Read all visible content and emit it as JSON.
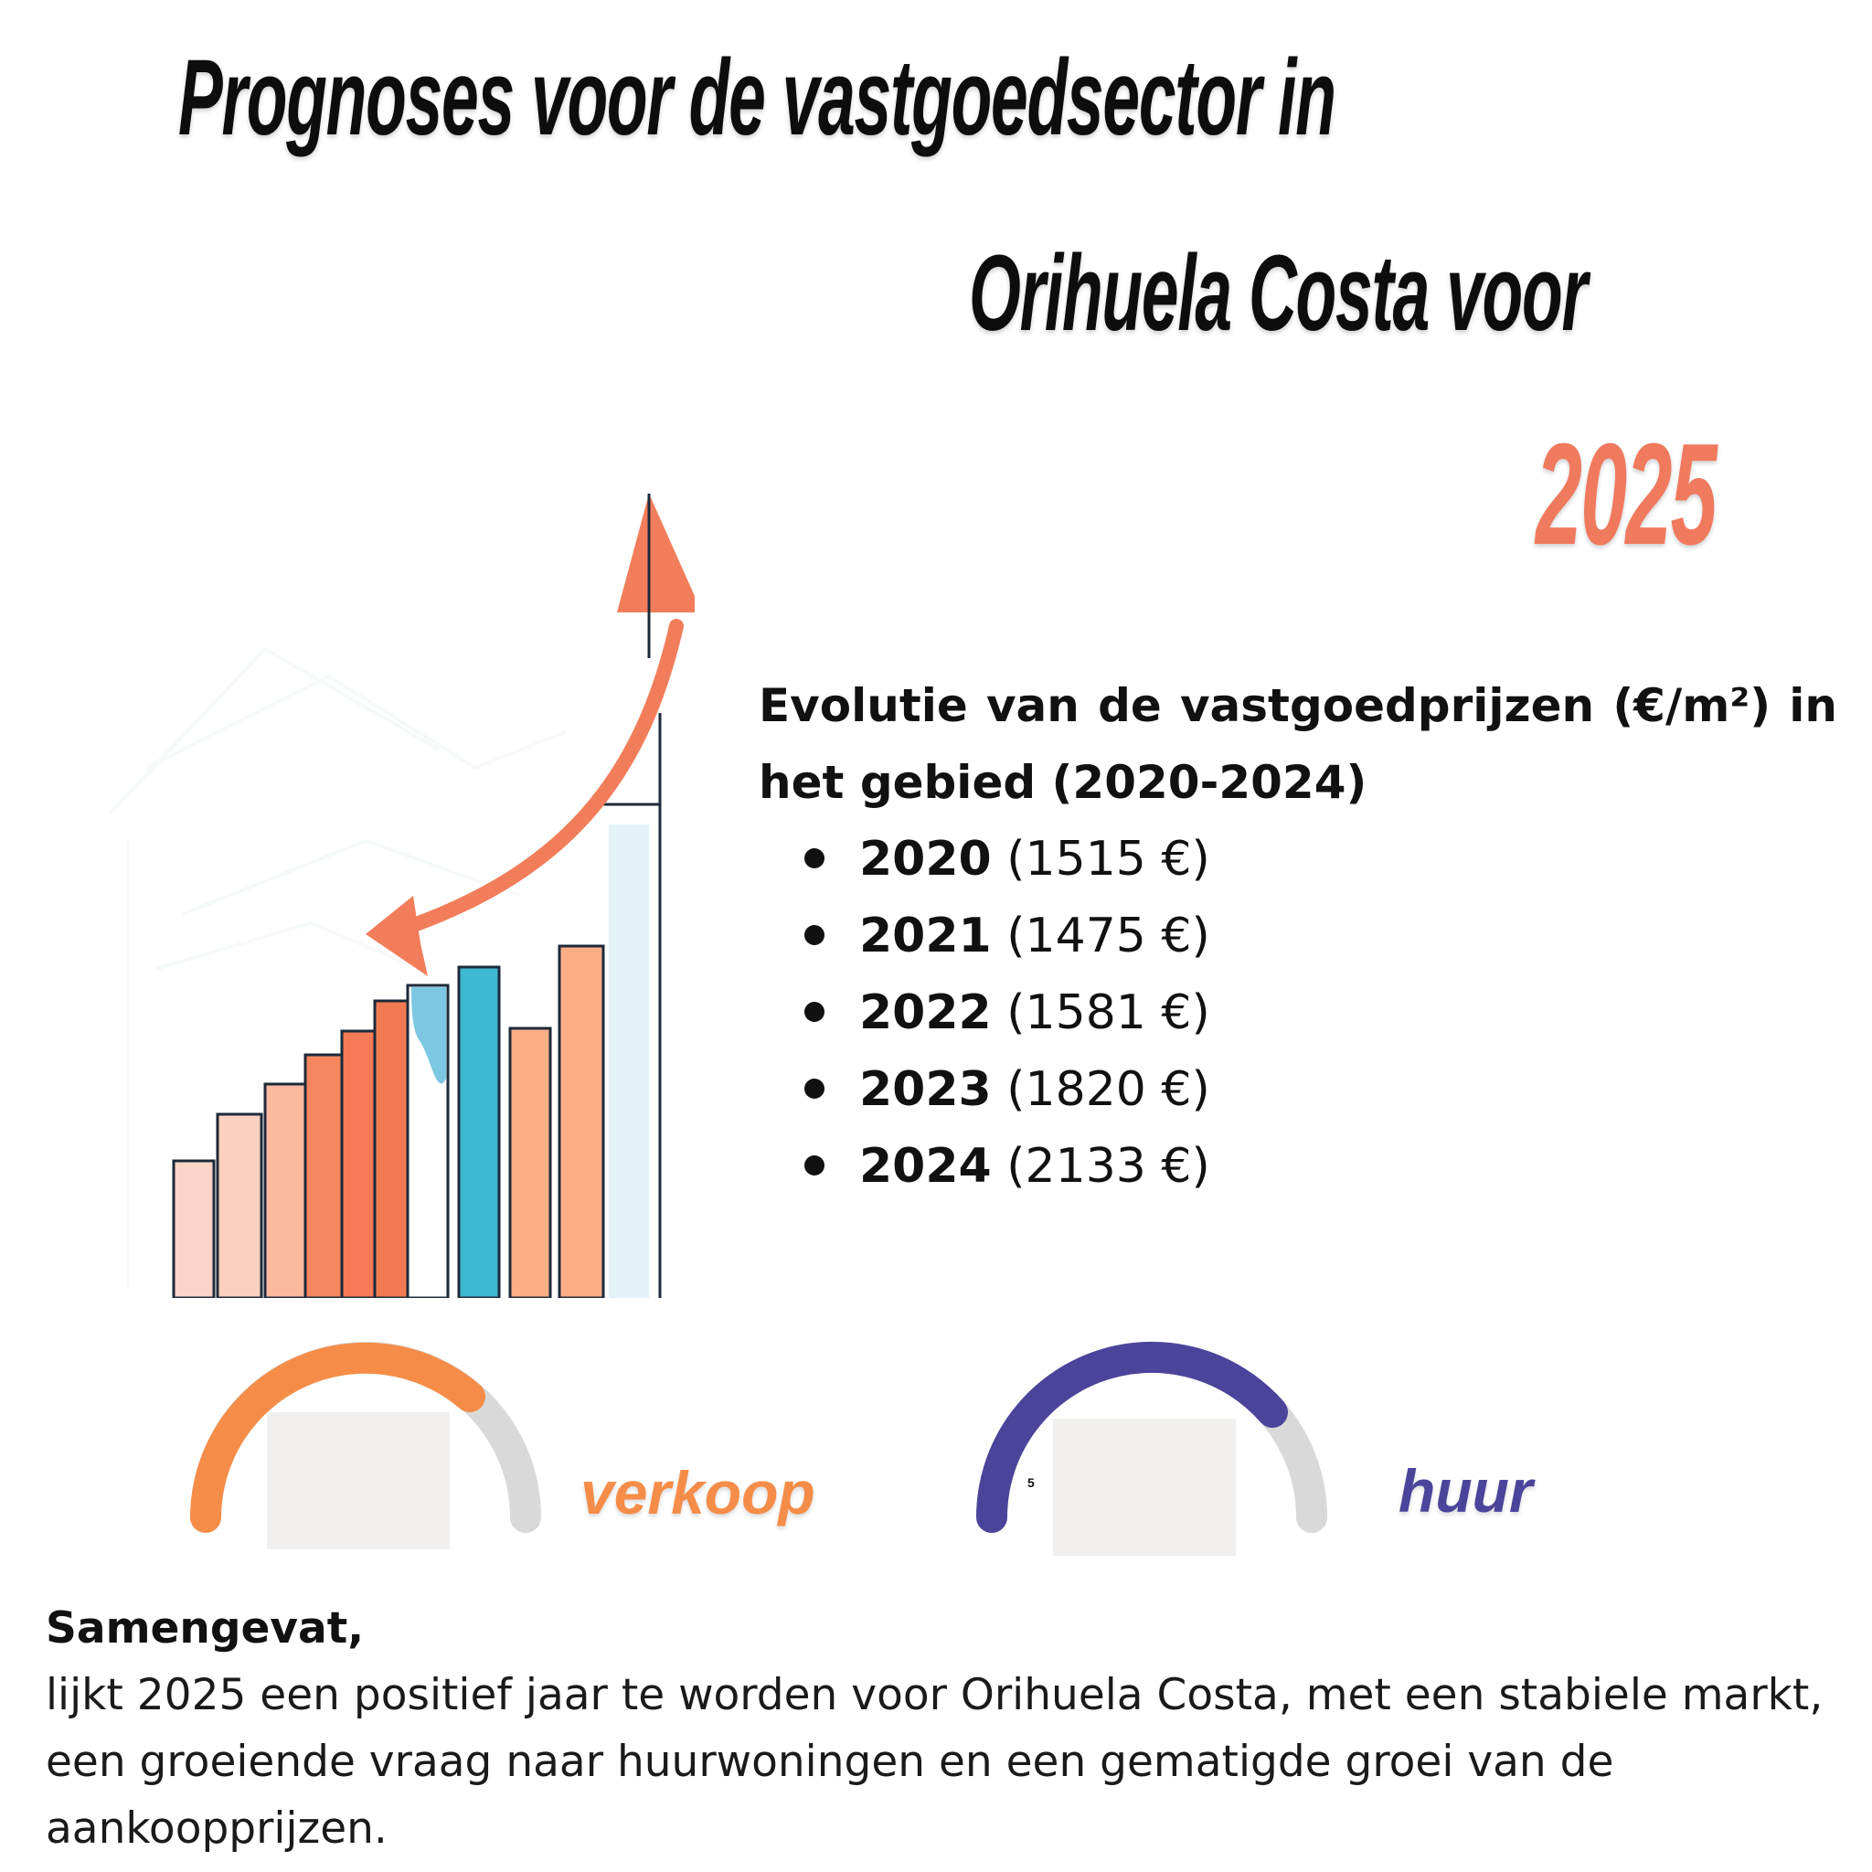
{
  "title": {
    "line1": "Prognoses voor de vastgoedsector in",
    "line2": "Orihuela Costa voor",
    "year": "2025"
  },
  "stats": {
    "heading": "Evolutie van de vastgoedprijzen (€/m²) in het gebied (2020-2024)",
    "items": [
      {
        "year": "2020",
        "price": "(1515 €)"
      },
      {
        "year": "2021",
        "price": "(1475 €)"
      },
      {
        "year": "2022",
        "price": "(1581 €)"
      },
      {
        "year": "2023",
        "price": "(1820 €)"
      },
      {
        "year": "2024",
        "price": "(2133 €)"
      }
    ]
  },
  "gauges": {
    "sale": {
      "label": "verkoop",
      "color": "#f58d48"
    },
    "rent": {
      "label": "huur",
      "color": "#4c449b",
      "min_label": "5"
    }
  },
  "summary": {
    "heading": "Samengevat,",
    "body": "lijkt 2025 een positief jaar te worden voor Orihuela Costa, met een stabiele markt, een groeiende vraag naar huurwoningen en een gematigde groei van de aankoopprijzen."
  },
  "colors": {
    "accent": "#f07a5e",
    "sale": "#f58d48",
    "rent": "#4c449b",
    "track": "#d9d9d9"
  }
}
